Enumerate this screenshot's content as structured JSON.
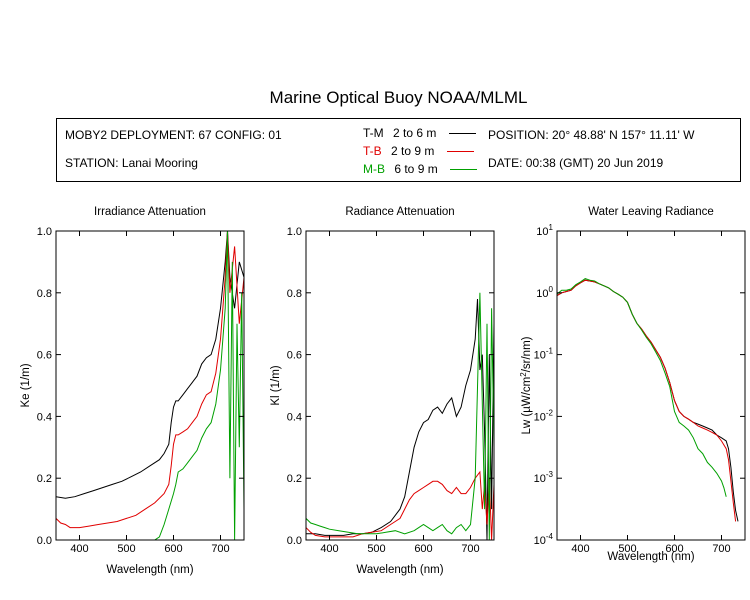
{
  "header": {
    "title": "Marine Optical Buoy NOAA/MLML",
    "deployment": "MOBY2 DEPLOYMENT: 67 CONFIG: 01",
    "station": "STATION: Lanai Mooring",
    "position": "POSITION: 20° 48.88' N   157° 11.11' W",
    "date": "DATE: 00:38 (GMT) 20 Jun 2019"
  },
  "legend": [
    {
      "code": "T-M",
      "range": "2 to 6  m",
      "color": "#000000"
    },
    {
      "code": "T-B",
      "range": "2 to 9  m",
      "color": "#e00000"
    },
    {
      "code": "M-B",
      "range": "6 to 9  m",
      "color": "#00a000"
    }
  ],
  "colors": {
    "T-M": "#000000",
    "T-B": "#e00000",
    "M-B": "#00a000"
  },
  "chart_data": [
    {
      "type": "line",
      "title": "Irradiance Attenuation",
      "xlabel": "Wavelength (nm)",
      "ylabel": "Ke  (1/m)",
      "xlim": [
        350,
        750
      ],
      "ylim": [
        0,
        1.0
      ],
      "xticks": [
        400,
        500,
        600,
        700
      ],
      "xtick_labels": [
        "400",
        "500",
        "600",
        "700"
      ],
      "yticks": [
        0,
        0.2,
        0.4,
        0.6,
        0.8,
        1.0
      ],
      "ytick_labels": [
        "0.0",
        "0.2",
        "0.4",
        "0.6",
        "0.8",
        "1.0"
      ],
      "yscale": "linear",
      "grid": false,
      "series": [
        {
          "name": "T-M",
          "x": [
            350,
            370,
            390,
            410,
            430,
            450,
            470,
            490,
            510,
            530,
            550,
            570,
            580,
            590,
            595,
            600,
            605,
            610,
            620,
            630,
            640,
            650,
            660,
            670,
            680,
            690,
            700,
            710,
            715,
            720,
            730,
            740,
            750
          ],
          "y": [
            0.14,
            0.135,
            0.14,
            0.15,
            0.16,
            0.17,
            0.18,
            0.19,
            0.205,
            0.22,
            0.24,
            0.26,
            0.28,
            0.31,
            0.38,
            0.43,
            0.45,
            0.45,
            0.47,
            0.49,
            0.51,
            0.53,
            0.57,
            0.59,
            0.6,
            0.65,
            0.75,
            0.9,
            1.0,
            0.85,
            0.75,
            0.9,
            0.85
          ]
        },
        {
          "name": "T-B",
          "x": [
            350,
            360,
            370,
            380,
            390,
            400,
            420,
            440,
            460,
            480,
            500,
            520,
            540,
            560,
            580,
            590,
            595,
            600,
            605,
            610,
            620,
            630,
            640,
            650,
            660,
            670,
            680,
            690,
            700,
            710,
            715,
            720,
            730,
            740,
            750
          ],
          "y": [
            0.07,
            0.055,
            0.05,
            0.04,
            0.04,
            0.04,
            0.045,
            0.05,
            0.055,
            0.06,
            0.07,
            0.08,
            0.1,
            0.12,
            0.15,
            0.18,
            0.24,
            0.31,
            0.34,
            0.34,
            0.35,
            0.36,
            0.38,
            0.4,
            0.44,
            0.47,
            0.48,
            0.54,
            0.65,
            0.85,
            1.0,
            0.8,
            0.95,
            0.7,
            0.85
          ]
        },
        {
          "name": "M-B",
          "x": [
            350,
            360,
            370,
            380,
            390,
            400,
            420,
            450,
            480,
            510,
            540,
            560,
            570,
            580,
            590,
            600,
            605,
            610,
            620,
            630,
            640,
            650,
            660,
            670,
            680,
            690,
            700,
            710,
            715,
            720,
            725,
            730,
            735,
            740,
            745,
            750
          ],
          "y": [
            0.0,
            0.0,
            0.0,
            0.0,
            0.0,
            0.0,
            0.0,
            0.0,
            0.0,
            0.0,
            0.0,
            0.0,
            0.01,
            0.05,
            0.1,
            0.15,
            0.18,
            0.22,
            0.23,
            0.25,
            0.27,
            0.29,
            0.33,
            0.36,
            0.38,
            0.44,
            0.55,
            0.75,
            1.0,
            0.2,
            0.9,
            0.0,
            0.7,
            0.3,
            0.8,
            0.1
          ]
        }
      ]
    },
    {
      "type": "line",
      "title": "Radiance Attenuation",
      "xlabel": "Wavelength (nm)",
      "ylabel": "Kl  (1/m)",
      "xlim": [
        350,
        750
      ],
      "ylim": [
        0,
        1.0
      ],
      "xticks": [
        400,
        500,
        600,
        700
      ],
      "xtick_labels": [
        "400",
        "500",
        "600",
        "700"
      ],
      "yticks": [
        0,
        0.2,
        0.4,
        0.6,
        0.8,
        1.0
      ],
      "ytick_labels": [
        "0.0",
        "0.2",
        "0.4",
        "0.6",
        "0.8",
        "1.0"
      ],
      "yscale": "linear",
      "grid": false,
      "series": [
        {
          "name": "T-M",
          "x": [
            350,
            370,
            390,
            410,
            430,
            450,
            470,
            490,
            510,
            530,
            550,
            560,
            570,
            580,
            590,
            600,
            610,
            620,
            630,
            640,
            650,
            660,
            670,
            680,
            690,
            700,
            710,
            715,
            720,
            725,
            730,
            735,
            740,
            745,
            750
          ],
          "y": [
            0.02,
            0.02,
            0.015,
            0.015,
            0.015,
            0.02,
            0.02,
            0.025,
            0.04,
            0.06,
            0.1,
            0.14,
            0.22,
            0.3,
            0.35,
            0.38,
            0.39,
            0.42,
            0.43,
            0.41,
            0.44,
            0.46,
            0.4,
            0.43,
            0.5,
            0.55,
            0.65,
            0.78,
            0.55,
            0.6,
            0.35,
            0.0,
            0.6,
            0.1,
            0.7
          ]
        },
        {
          "name": "T-B",
          "x": [
            350,
            360,
            370,
            390,
            410,
            430,
            450,
            470,
            490,
            510,
            530,
            550,
            560,
            570,
            580,
            590,
            600,
            610,
            620,
            630,
            640,
            650,
            660,
            670,
            680,
            690,
            700,
            710,
            720,
            725,
            730,
            735,
            740,
            745,
            750
          ],
          "y": [
            0.04,
            0.025,
            0.015,
            0.01,
            0.01,
            0.01,
            0.01,
            0.02,
            0.025,
            0.03,
            0.05,
            0.07,
            0.1,
            0.13,
            0.15,
            0.16,
            0.17,
            0.18,
            0.19,
            0.19,
            0.18,
            0.16,
            0.15,
            0.17,
            0.15,
            0.15,
            0.17,
            0.2,
            0.22,
            0.1,
            0.18,
            0.05,
            0.2,
            0.0,
            0.18
          ]
        },
        {
          "name": "M-B",
          "x": [
            350,
            360,
            370,
            380,
            390,
            400,
            420,
            440,
            460,
            480,
            500,
            520,
            540,
            560,
            580,
            590,
            600,
            610,
            620,
            630,
            640,
            650,
            660,
            670,
            680,
            690,
            700,
            710,
            720,
            730,
            735,
            740,
            745,
            750
          ],
          "y": [
            0.07,
            0.055,
            0.05,
            0.045,
            0.04,
            0.035,
            0.03,
            0.025,
            0.02,
            0.02,
            0.02,
            0.025,
            0.03,
            0.02,
            0.03,
            0.04,
            0.05,
            0.04,
            0.03,
            0.04,
            0.05,
            0.03,
            0.02,
            0.04,
            0.05,
            0.03,
            0.05,
            0.2,
            0.8,
            0.1,
            0.7,
            0.0,
            0.75,
            0.3
          ]
        }
      ]
    },
    {
      "type": "line",
      "title": "Water Leaving Radiance",
      "xlabel": "Wavelength (nm)",
      "ylabel_parts": [
        "Lw  (µW/cm",
        "2",
        "/sr/nm)"
      ],
      "xlim": [
        350,
        750
      ],
      "yscale": "log",
      "ylim": [
        0.0001,
        10
      ],
      "xticks": [
        400,
        500,
        600,
        700
      ],
      "xtick_labels": [
        "400",
        "500",
        "600",
        "700"
      ],
      "yticks": [
        0.0001,
        0.001,
        0.01,
        0.1,
        1,
        10
      ],
      "ytick_exponents": [
        "-4",
        "-3",
        "-2",
        "-1",
        "0",
        "1"
      ],
      "ytick_base": "10",
      "grid": false,
      "series": [
        {
          "name": "T-M",
          "x": [
            350,
            360,
            370,
            380,
            390,
            400,
            410,
            420,
            430,
            440,
            450,
            460,
            470,
            480,
            490,
            500,
            510,
            520,
            530,
            540,
            550,
            560,
            570,
            580,
            590,
            600,
            610,
            620,
            630,
            640,
            650,
            660,
            670,
            680,
            690,
            700,
            710,
            715,
            720,
            725,
            730,
            735
          ],
          "y": [
            0.9,
            1.0,
            1.05,
            1.1,
            1.3,
            1.45,
            1.6,
            1.55,
            1.5,
            1.4,
            1.3,
            1.2,
            1.05,
            0.95,
            0.85,
            0.7,
            0.45,
            0.32,
            0.26,
            0.2,
            0.16,
            0.12,
            0.09,
            0.06,
            0.035,
            0.018,
            0.012,
            0.01,
            0.009,
            0.008,
            0.0075,
            0.007,
            0.0065,
            0.006,
            0.005,
            0.0045,
            0.004,
            0.003,
            0.0015,
            0.0006,
            0.0003,
            0.0002
          ]
        },
        {
          "name": "T-B",
          "x": [
            350,
            360,
            370,
            380,
            390,
            400,
            410,
            420,
            430,
            440,
            450,
            460,
            470,
            480,
            490,
            500,
            510,
            520,
            530,
            540,
            550,
            560,
            570,
            580,
            590,
            600,
            610,
            620,
            630,
            640,
            650,
            660,
            670,
            680,
            690,
            700,
            710,
            715,
            720,
            725,
            730
          ],
          "y": [
            0.9,
            1.0,
            1.05,
            1.1,
            1.3,
            1.45,
            1.6,
            1.55,
            1.5,
            1.4,
            1.3,
            1.2,
            1.05,
            0.95,
            0.85,
            0.7,
            0.45,
            0.32,
            0.26,
            0.2,
            0.16,
            0.12,
            0.09,
            0.06,
            0.035,
            0.018,
            0.012,
            0.01,
            0.009,
            0.008,
            0.007,
            0.0065,
            0.006,
            0.0055,
            0.005,
            0.004,
            0.003,
            0.002,
            0.0009,
            0.0004,
            0.0002
          ]
        },
        {
          "name": "M-B",
          "x": [
            350,
            360,
            370,
            380,
            390,
            400,
            410,
            420,
            430,
            440,
            450,
            460,
            470,
            480,
            490,
            500,
            510,
            520,
            530,
            540,
            550,
            560,
            570,
            580,
            590,
            600,
            610,
            620,
            630,
            640,
            650,
            660,
            670,
            680,
            690,
            700,
            705,
            710
          ],
          "y": [
            0.95,
            1.1,
            1.1,
            1.15,
            1.35,
            1.5,
            1.7,
            1.6,
            1.55,
            1.4,
            1.3,
            1.2,
            1.05,
            0.95,
            0.85,
            0.7,
            0.45,
            0.32,
            0.25,
            0.19,
            0.15,
            0.11,
            0.08,
            0.05,
            0.03,
            0.012,
            0.008,
            0.007,
            0.006,
            0.0045,
            0.003,
            0.0025,
            0.0018,
            0.0015,
            0.0012,
            0.0009,
            0.0007,
            0.0005
          ]
        }
      ]
    }
  ]
}
